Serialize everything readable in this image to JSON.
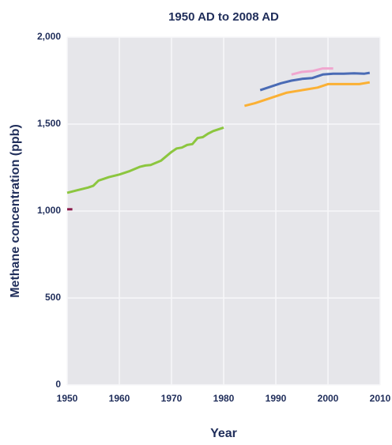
{
  "chart_data": {
    "type": "line",
    "title": "1950 AD to 2008 AD",
    "x_label": "Year",
    "y_label": "Methane concentration (ppb)",
    "xlim": [
      1950,
      2010
    ],
    "xticks": [
      1950,
      1960,
      1970,
      1980,
      1990,
      2000,
      2010
    ],
    "ylim": [
      0,
      2000
    ],
    "yticks": [
      0,
      500,
      {
        "value": 1000,
        "label": "1,000"
      },
      {
        "value": 1500,
        "label": "1,500"
      },
      {
        "value": 2000,
        "label": "2,000"
      }
    ],
    "grid": true,
    "series": [
      {
        "color": "#8b1a4a",
        "x": [
          1950,
          1951
        ],
        "values": [
          1010,
          1010
        ]
      },
      {
        "color": "#8cc63f",
        "x": [
          1950,
          1952,
          1954,
          1955,
          1956,
          1957,
          1958,
          1960,
          1962,
          1964,
          1965,
          1966,
          1968,
          1970,
          1971,
          1972,
          1973,
          1974,
          1975,
          1976,
          1977,
          1978,
          1980
        ],
        "values": [
          1105,
          1120,
          1135,
          1145,
          1175,
          1185,
          1195,
          1210,
          1230,
          1255,
          1262,
          1265,
          1290,
          1340,
          1360,
          1365,
          1380,
          1385,
          1420,
          1425,
          1445,
          1460,
          1480
        ]
      },
      {
        "color": "#fbb034",
        "x": [
          1984,
          1986,
          1988,
          1990,
          1992,
          1994,
          1996,
          1998,
          2000,
          2002,
          2004,
          2006,
          2008
        ],
        "values": [
          1605,
          1620,
          1640,
          1660,
          1680,
          1690,
          1700,
          1710,
          1730,
          1730,
          1730,
          1730,
          1740
        ]
      },
      {
        "color": "#4a6bb5",
        "x": [
          1987,
          1989,
          1991,
          1993,
          1995,
          1997,
          1999,
          2001,
          2003,
          2005,
          2007,
          2008
        ],
        "values": [
          1695,
          1715,
          1735,
          1750,
          1760,
          1765,
          1785,
          1790,
          1790,
          1792,
          1790,
          1795
        ]
      },
      {
        "color": "#f0a6cf",
        "x": [
          1993,
          1995,
          1997,
          1999,
          2001
        ],
        "values": [
          1785,
          1800,
          1805,
          1820,
          1820
        ]
      }
    ]
  }
}
